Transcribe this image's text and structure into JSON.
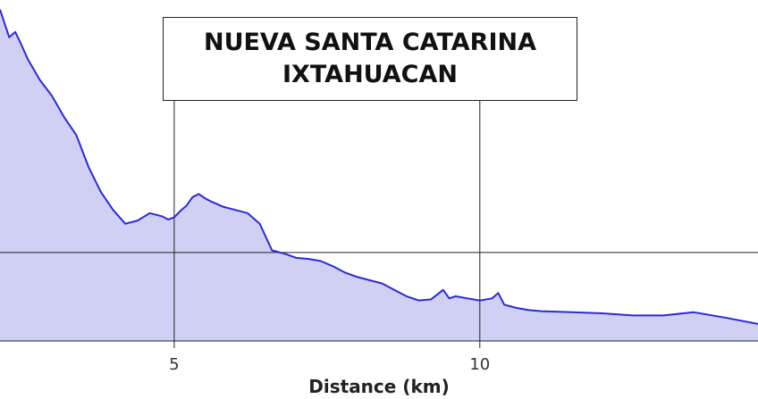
{
  "title": {
    "line1": "NUEVA SANTA CATARINA",
    "line2": "IXTAHUACAN"
  },
  "chart_data": {
    "type": "area",
    "title": "NUEVA SANTA CATARINA IXTAHUACAN",
    "xlabel": "Distance (km)",
    "ylabel": "",
    "xlim": [
      2.15,
      14.55
    ],
    "ylim": [
      0,
      320
    ],
    "xticks": [
      5,
      10
    ],
    "xtick_labels": [
      "5",
      "10"
    ],
    "hline": 83,
    "grid": "vertical lines at ticks, one horizontal reference line",
    "colors": {
      "line": "#2a2ad8",
      "fill": "#d0d0f5"
    },
    "x": [
      2.15,
      2.3,
      2.4,
      2.5,
      2.6,
      2.8,
      3.0,
      3.2,
      3.4,
      3.6,
      3.8,
      4.0,
      4.2,
      4.4,
      4.6,
      4.8,
      4.9,
      5.0,
      5.1,
      5.2,
      5.3,
      5.4,
      5.5,
      5.6,
      5.8,
      6.0,
      6.2,
      6.4,
      6.6,
      6.8,
      7.0,
      7.2,
      7.4,
      7.6,
      7.8,
      8.0,
      8.2,
      8.4,
      8.6,
      8.8,
      9.0,
      9.2,
      9.4,
      9.5,
      9.6,
      9.8,
      10.0,
      10.2,
      10.3,
      10.4,
      10.6,
      10.8,
      11.0,
      11.5,
      12.0,
      12.5,
      13.0,
      13.5,
      14.0,
      14.55
    ],
    "y": [
      311,
      285,
      290,
      278,
      265,
      245,
      230,
      210,
      193,
      163,
      140,
      123,
      110,
      113,
      120,
      117,
      114,
      116,
      122,
      127,
      135,
      138,
      134,
      131,
      126,
      123,
      120,
      110,
      85,
      82,
      78,
      77,
      75,
      70,
      64,
      60,
      57,
      54,
      48,
      42,
      38,
      39,
      48,
      40,
      42,
      40,
      38,
      40,
      45,
      34,
      31,
      29,
      28,
      27,
      26,
      24,
      24,
      27,
      22,
      16
    ]
  }
}
